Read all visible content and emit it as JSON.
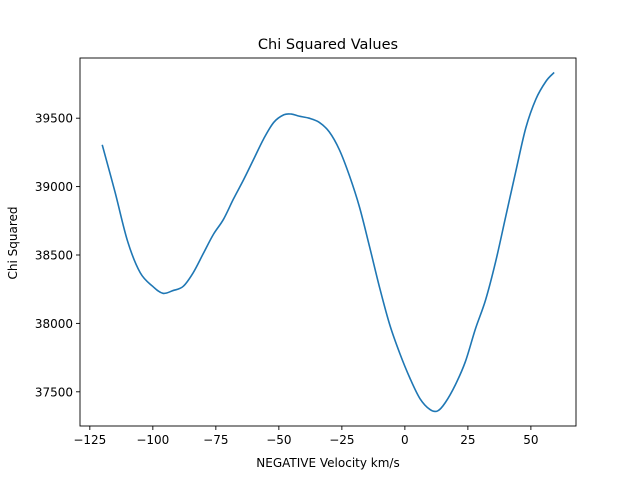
{
  "chart_data": {
    "type": "line",
    "title": "Chi Squared Values",
    "xlabel": "NEGATIVE Velocity km/s",
    "ylabel": "Chi Squared",
    "xlim": [
      -128.9,
      67.9
    ],
    "ylim": [
      37250,
      39940
    ],
    "x_ticks": [
      -125,
      -100,
      -75,
      -50,
      -25,
      0,
      25,
      50
    ],
    "x_tick_labels": [
      "−125",
      "−100",
      "−75",
      "−50",
      "−25",
      "0",
      "25",
      "50"
    ],
    "y_ticks": [
      37500,
      38000,
      38500,
      39000,
      39500
    ],
    "y_tick_labels": [
      "37500",
      "38000",
      "38500",
      "39000",
      "39500"
    ],
    "grid": false,
    "line_color": "#1f77b4",
    "series": [
      {
        "x": [
          -120,
          -115,
          -110,
          -105,
          -100,
          -96,
          -92,
          -88,
          -84,
          -80,
          -76,
          -72,
          -68,
          -64,
          -60,
          -56,
          -52,
          -48,
          -45,
          -42,
          -38,
          -34,
          -30,
          -26,
          -22,
          -18,
          -14,
          -10,
          -6,
          -2,
          2,
          6,
          10,
          13,
          16,
          20,
          24,
          28,
          32,
          36,
          40,
          44,
          48,
          52,
          56,
          59
        ],
        "y": [
          39300,
          38960,
          38600,
          38370,
          38270,
          38220,
          38240,
          38270,
          38370,
          38510,
          38650,
          38760,
          38910,
          39050,
          39200,
          39350,
          39470,
          39525,
          39530,
          39515,
          39500,
          39470,
          39400,
          39270,
          39080,
          38850,
          38560,
          38260,
          37990,
          37780,
          37600,
          37450,
          37370,
          37360,
          37420,
          37550,
          37720,
          37960,
          38170,
          38450,
          38780,
          39110,
          39430,
          39640,
          39770,
          39830
        ]
      }
    ]
  }
}
